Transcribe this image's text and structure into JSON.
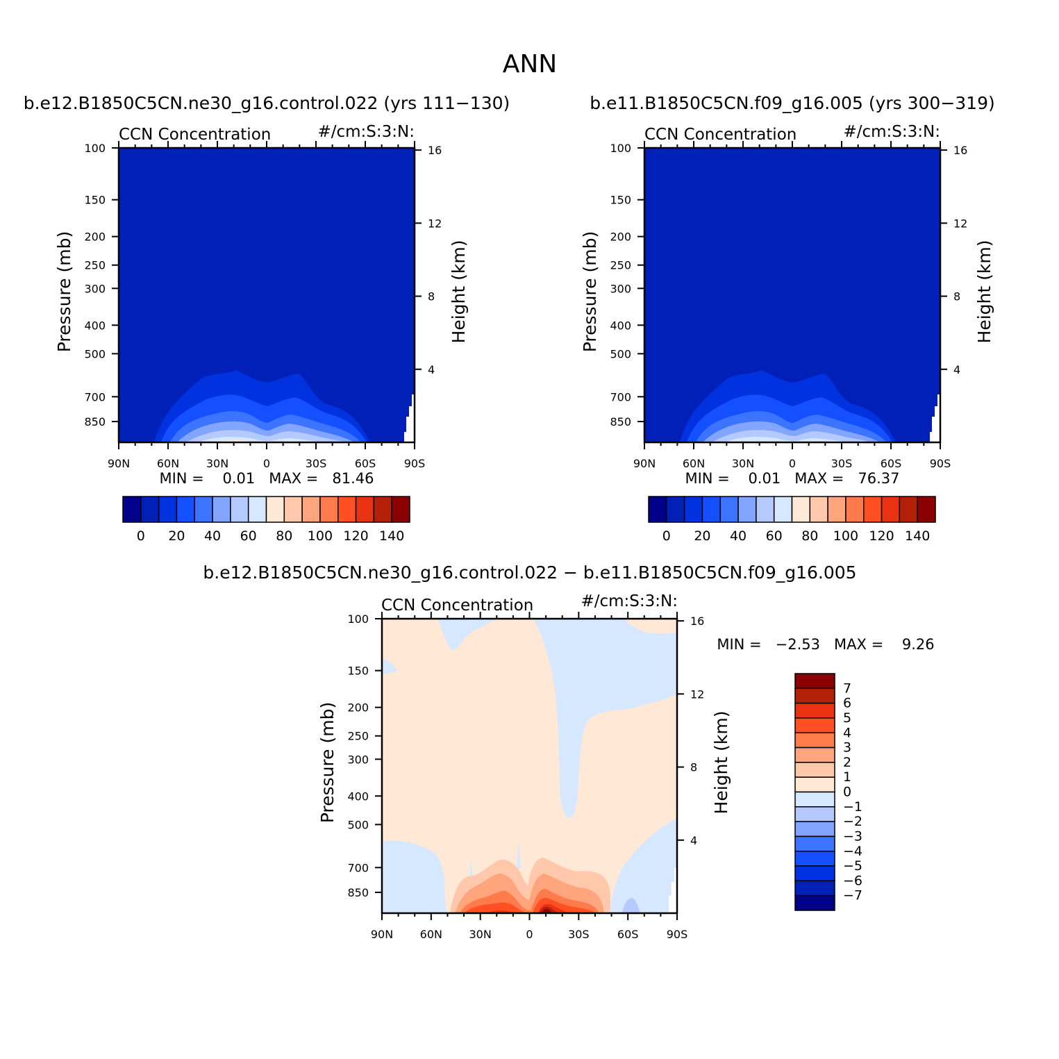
{
  "title": "ANN",
  "chart_data": [
    {
      "type": "heatmap",
      "panel_title": "b.e12.B1850C5CN.ne30_g16.control.022 (yrs 111−130)",
      "left_string": "CCN Concentration",
      "right_string": "#/cm:S:3:N:",
      "ylabel": "Pressure (mb)",
      "ylabel_right": "Height (km)",
      "x_ticks": [
        "90N",
        "60N",
        "30N",
        "0",
        "30S",
        "60S",
        "90S"
      ],
      "y_ticks": [
        "100",
        "150",
        "200",
        "250",
        "300",
        "400",
        "500",
        "700",
        "850"
      ],
      "y_ticks_right": [
        "16",
        "12",
        "8",
        "4"
      ],
      "ylim": [
        1000,
        100
      ],
      "xlim": [
        90,
        -90
      ],
      "stats": "MIN =    0.01   MAX =   81.46",
      "min": 0.01,
      "max": 81.46,
      "levels": [
        0,
        10,
        20,
        30,
        40,
        50,
        60,
        70,
        80,
        90,
        100,
        110,
        120,
        130,
        140
      ],
      "colorbar_labels": [
        "0",
        "20",
        "40",
        "60",
        "80",
        "100",
        "120",
        "140"
      ]
    },
    {
      "type": "heatmap",
      "panel_title": "b.e11.B1850C5CN.f09_g16.005 (yrs 300−319)",
      "left_string": "CCN Concentration",
      "right_string": "#/cm:S:3:N:",
      "ylabel": "Pressure (mb)",
      "ylabel_right": "Height (km)",
      "x_ticks": [
        "90N",
        "60N",
        "30N",
        "0",
        "30S",
        "60S",
        "90S"
      ],
      "y_ticks": [
        "100",
        "150",
        "200",
        "250",
        "300",
        "400",
        "500",
        "700",
        "850"
      ],
      "y_ticks_right": [
        "16",
        "12",
        "8",
        "4"
      ],
      "ylim": [
        1000,
        100
      ],
      "xlim": [
        90,
        -90
      ],
      "stats": "MIN =    0.01   MAX =   76.37",
      "min": 0.01,
      "max": 76.37,
      "levels": [
        0,
        10,
        20,
        30,
        40,
        50,
        60,
        70,
        80,
        90,
        100,
        110,
        120,
        130,
        140
      ],
      "colorbar_labels": [
        "0",
        "20",
        "40",
        "60",
        "80",
        "100",
        "120",
        "140"
      ]
    },
    {
      "type": "heatmap",
      "panel_title": "b.e12.B1850C5CN.ne30_g16.control.022 − b.e11.B1850C5CN.f09_g16.005",
      "left_string": "CCN Concentration",
      "right_string": "#/cm:S:3:N:",
      "ylabel": "Pressure (mb)",
      "ylabel_right": "Height (km)",
      "x_ticks": [
        "90N",
        "60N",
        "30N",
        "0",
        "30S",
        "60S",
        "90S"
      ],
      "y_ticks": [
        "100",
        "150",
        "200",
        "250",
        "300",
        "400",
        "500",
        "700",
        "850"
      ],
      "y_ticks_right": [
        "16",
        "12",
        "8",
        "4"
      ],
      "ylim": [
        1000,
        100
      ],
      "xlim": [
        90,
        -90
      ],
      "stats": "MIN =   −2.53   MAX =    9.26",
      "min": -2.53,
      "max": 9.26,
      "levels": [
        -7,
        -6,
        -5,
        -4,
        -3,
        -2,
        -1,
        0,
        1,
        2,
        3,
        4,
        5,
        6,
        7
      ],
      "colorbar_labels": [
        "7",
        "6",
        "5",
        "4",
        "3",
        "2",
        "1",
        "0",
        "−1",
        "−2",
        "−3",
        "−4",
        "−5",
        "−6",
        "−7"
      ]
    }
  ],
  "colormap": [
    "#00008b",
    "#0020b8",
    "#0032e0",
    "#1450ff",
    "#3c73ff",
    "#82a6ff",
    "#b4caff",
    "#d6e8ff",
    "#ffe9d6",
    "#ffc8aa",
    "#ffa57d",
    "#ff7b4c",
    "#ff5024",
    "#e83212",
    "#b52108",
    "#8b0000"
  ]
}
